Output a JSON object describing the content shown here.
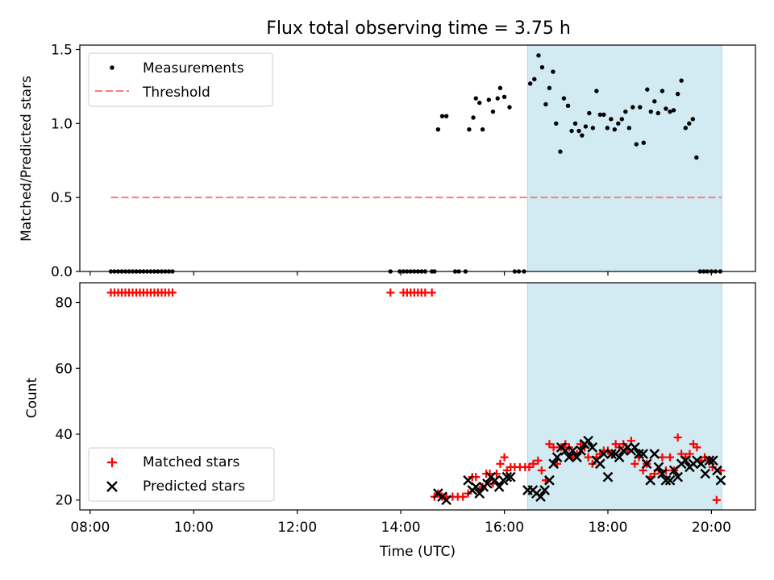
{
  "title": "Flux total observing time = 3.75 h",
  "colors": {
    "measurements": "#000000",
    "threshold": "#ff7a7a",
    "matched": "#ff0000",
    "predicted": "#000000",
    "shade": "#add8e6"
  },
  "chart_data": [
    {
      "type": "scatter",
      "ylabel": "Matched/Predicted stars",
      "xlim": [
        7.8,
        20.85
      ],
      "ylim": [
        0,
        1.53
      ],
      "yticks": [
        0.0,
        0.5,
        1.0,
        1.5
      ],
      "ytick_labels": [
        "0.0",
        "0.5",
        "1.0",
        "1.5"
      ],
      "shaded_region": [
        16.45,
        20.2
      ],
      "legend": {
        "position": "top-left",
        "entries": [
          "Measurements",
          "Threshold"
        ]
      },
      "threshold": {
        "name": "Threshold",
        "y": 0.5,
        "x": [
          8.4,
          20.2
        ]
      },
      "series": [
        {
          "name": "Measurements",
          "x": [
            8.4,
            8.47,
            8.54,
            8.61,
            8.68,
            8.75,
            8.82,
            8.89,
            8.96,
            9.03,
            9.1,
            9.17,
            9.24,
            9.31,
            9.38,
            9.45,
            9.52,
            9.59,
            13.8,
            13.98,
            14.05,
            14.12,
            14.19,
            14.26,
            14.33,
            14.4,
            14.47,
            14.6,
            14.65,
            14.72,
            14.8,
            14.88,
            15.05,
            15.12,
            15.25,
            15.32,
            15.4,
            15.45,
            15.52,
            15.58,
            15.7,
            15.78,
            15.87,
            15.92,
            16.0,
            16.1,
            16.2,
            16.28,
            16.38,
            16.5,
            16.58,
            16.66,
            16.73,
            16.8,
            16.87,
            16.94,
            17.0,
            17.08,
            17.15,
            17.23,
            17.3,
            17.37,
            17.44,
            17.5,
            17.57,
            17.64,
            17.71,
            17.78,
            17.85,
            17.92,
            17.99,
            18.06,
            18.13,
            18.2,
            18.27,
            18.34,
            18.41,
            18.48,
            18.55,
            18.62,
            18.69,
            18.76,
            18.83,
            18.9,
            18.97,
            19.05,
            19.12,
            19.2,
            19.27,
            19.35,
            19.42,
            19.5,
            19.57,
            19.64,
            19.71,
            19.78,
            19.85,
            19.92,
            20.0,
            20.08,
            20.17
          ],
          "y": [
            0,
            0,
            0,
            0,
            0,
            0,
            0,
            0,
            0,
            0,
            0,
            0,
            0,
            0,
            0,
            0,
            0,
            0,
            0,
            0,
            0,
            0,
            0,
            0,
            0,
            0,
            0,
            0,
            0,
            0.96,
            1.05,
            1.05,
            0,
            0,
            0,
            0.96,
            1.04,
            1.17,
            1.14,
            0.96,
            1.16,
            1.08,
            1.17,
            1.24,
            1.18,
            1.11,
            0,
            0,
            0,
            1.27,
            1.3,
            1.46,
            1.38,
            1.13,
            1.24,
            1.35,
            1.0,
            0.81,
            1.17,
            1.12,
            0.95,
            1.0,
            0.95,
            0.92,
            0.98,
            1.07,
            0.97,
            1.22,
            1.06,
            1.06,
            0.97,
            1.03,
            0.96,
            1.0,
            1.03,
            1.08,
            0.97,
            1.11,
            0.86,
            1.11,
            0.87,
            1.23,
            1.08,
            1.15,
            1.07,
            1.22,
            1.1,
            1.08,
            1.09,
            1.2,
            1.29,
            0.97,
            1.0,
            1.03,
            0.77,
            0,
            0,
            0,
            0,
            0,
            0
          ]
        }
      ]
    },
    {
      "type": "scatter",
      "xlabel": "Time (UTC)",
      "ylabel": "Count",
      "xlim": [
        7.8,
        20.85
      ],
      "ylim": [
        17,
        86
      ],
      "xticks": [
        8,
        10,
        12,
        14,
        16,
        18,
        20
      ],
      "xtick_labels": [
        "08:00",
        "10:00",
        "12:00",
        "14:00",
        "16:00",
        "18:00",
        "20:00"
      ],
      "yticks": [
        20,
        40,
        60,
        80
      ],
      "ytick_labels": [
        "20",
        "40",
        "60",
        "80"
      ],
      "shaded_region": [
        16.45,
        20.2
      ],
      "legend": {
        "position": "bottom-left",
        "entries": [
          "Matched stars",
          "Predicted stars"
        ]
      },
      "series": [
        {
          "name": "Matched stars",
          "x": [
            8.4,
            8.47,
            8.54,
            8.61,
            8.68,
            8.75,
            8.82,
            8.89,
            8.96,
            9.03,
            9.1,
            9.17,
            9.24,
            9.31,
            9.38,
            9.45,
            9.52,
            9.59,
            13.8,
            14.05,
            14.12,
            14.19,
            14.26,
            14.33,
            14.4,
            14.47,
            14.6,
            14.65,
            14.72,
            14.8,
            14.88,
            15.0,
            15.1,
            15.2,
            15.3,
            15.38,
            15.45,
            15.52,
            15.58,
            15.65,
            15.72,
            15.78,
            15.85,
            15.92,
            16.0,
            16.05,
            16.12,
            16.2,
            16.3,
            16.4,
            16.48,
            16.56,
            16.65,
            16.72,
            16.8,
            16.87,
            16.95,
            17.02,
            17.1,
            17.18,
            17.25,
            17.32,
            17.4,
            17.47,
            17.55,
            17.62,
            17.7,
            17.78,
            17.85,
            17.92,
            18.0,
            18.08,
            18.15,
            18.22,
            18.3,
            18.38,
            18.45,
            18.52,
            18.6,
            18.68,
            18.75,
            18.82,
            18.9,
            18.98,
            19.05,
            19.12,
            19.2,
            19.28,
            19.35,
            19.42,
            19.5,
            19.58,
            19.65,
            19.72,
            19.8,
            19.87,
            19.95,
            20.02,
            20.1,
            20.18
          ],
          "y": [
            83,
            83,
            83,
            83,
            83,
            83,
            83,
            83,
            83,
            83,
            83,
            83,
            83,
            83,
            83,
            83,
            83,
            83,
            83,
            83,
            83,
            83,
            83,
            83,
            83,
            83,
            83,
            21,
            22,
            21,
            21,
            21,
            21,
            21,
            22,
            27,
            27,
            23,
            24,
            28,
            28,
            25,
            28,
            31,
            33,
            29,
            30,
            30,
            30,
            30,
            30,
            31,
            32,
            29,
            26,
            37,
            36,
            31,
            36,
            37,
            36,
            33,
            34,
            37,
            36,
            33,
            31,
            33,
            34,
            35,
            35,
            34,
            37,
            36,
            37,
            35,
            38,
            31,
            33,
            29,
            31,
            27,
            28,
            29,
            33,
            29,
            33,
            29,
            39,
            34,
            33,
            34,
            37,
            36,
            32,
            33,
            32,
            30,
            20,
            29
          ]
        },
        {
          "name": "Predicted stars",
          "x": [
            14.72,
            14.8,
            14.88,
            15.3,
            15.38,
            15.45,
            15.52,
            15.6,
            15.67,
            15.74,
            15.82,
            15.9,
            15.98,
            16.05,
            16.12,
            16.45,
            16.55,
            16.62,
            16.7,
            16.78,
            16.87,
            16.95,
            17.02,
            17.1,
            17.18,
            17.25,
            17.32,
            17.4,
            17.48,
            17.55,
            17.62,
            17.7,
            17.78,
            17.85,
            17.92,
            18.0,
            18.07,
            18.15,
            18.22,
            18.3,
            18.38,
            18.45,
            18.52,
            18.6,
            18.68,
            18.75,
            18.82,
            18.9,
            18.98,
            19.05,
            19.12,
            19.2,
            19.28,
            19.35,
            19.42,
            19.5,
            19.58,
            19.65,
            19.72,
            19.8,
            19.88,
            19.96,
            20.03,
            20.11,
            20.18
          ],
          "y": [
            22,
            21,
            20,
            26,
            23,
            24,
            22,
            24,
            25,
            27,
            26,
            24,
            26,
            27,
            27,
            23,
            23,
            22,
            21,
            23,
            26,
            31,
            33,
            36,
            35,
            33,
            35,
            33,
            35,
            37,
            38,
            36,
            32,
            31,
            34,
            27,
            34,
            34,
            33,
            35,
            36,
            35,
            36,
            34,
            34,
            31,
            26,
            34,
            30,
            28,
            26,
            26,
            29,
            27,
            31,
            32,
            30,
            31,
            32,
            31,
            28,
            32,
            32,
            29,
            26
          ]
        }
      ]
    }
  ]
}
